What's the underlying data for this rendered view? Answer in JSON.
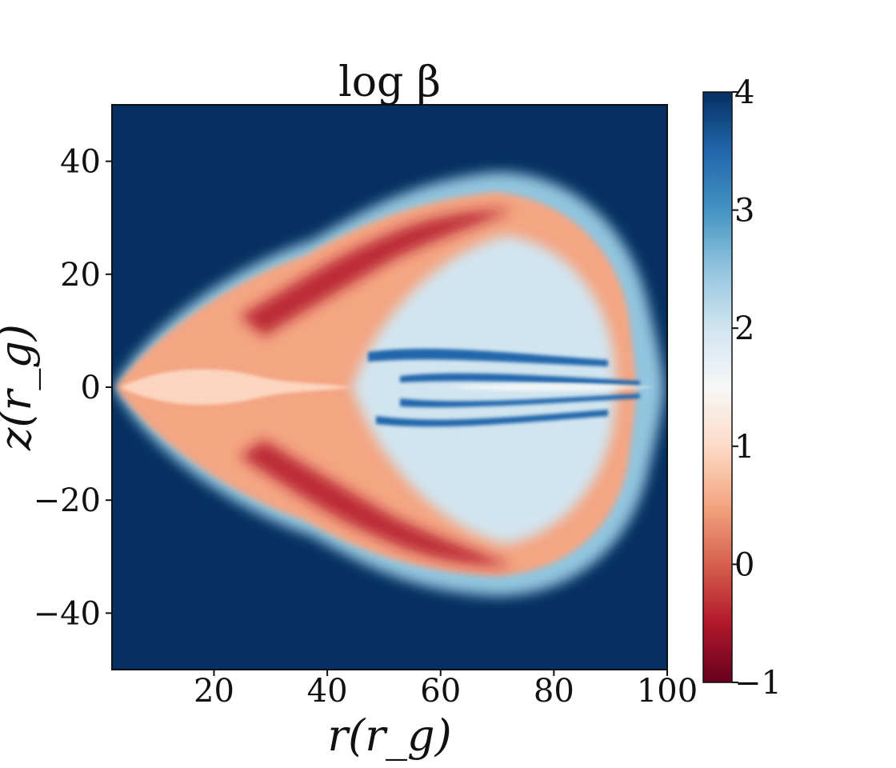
{
  "chart_data": {
    "type": "heatmap",
    "title": "log β",
    "xlabel": "r(r_g)",
    "ylabel": "z(r_g)",
    "xlim": [
      2,
      100
    ],
    "ylim": [
      -50,
      50
    ],
    "x_ticks": [
      20,
      40,
      60,
      80,
      100
    ],
    "y_ticks": [
      -40,
      -20,
      0,
      20,
      40
    ],
    "colorbar": {
      "label": "",
      "range": [
        -1,
        4
      ],
      "ticks": [
        -1,
        0,
        1,
        2,
        3,
        4
      ],
      "colormap": "RdBu",
      "stops": [
        "#67001f",
        "#b2182b",
        "#d6604d",
        "#f4a582",
        "#fddbc7",
        "#f7f7f7",
        "#d1e5f0",
        "#92c5de",
        "#4393c3",
        "#2166ac",
        "#053061"
      ]
    },
    "field_description_values": {
      "background_logbeta": 4,
      "outer_shell_logbeta": 0,
      "shell_min_logbeta": -1,
      "cavity_logbeta": 2,
      "midplane_streaks_logbeta": 3.5
    },
    "grid": false
  },
  "colors": {
    "axis": "#111111",
    "background": "#ffffff"
  }
}
